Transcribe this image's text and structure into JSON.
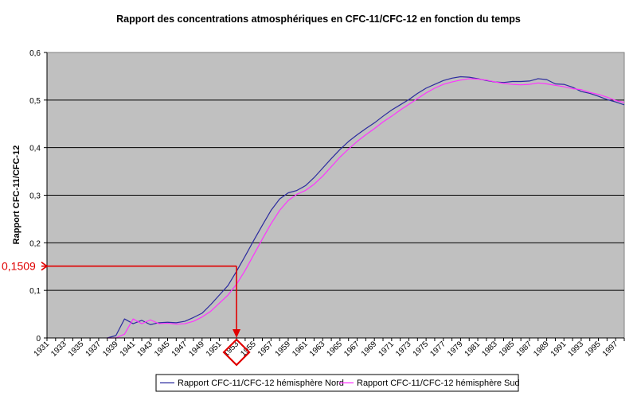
{
  "chart_data": {
    "type": "line",
    "title": "Rapport des concentrations atmosphériques en CFC-11/CFC-12 en fonction du temps",
    "xlabel": "",
    "ylabel": "Rapport CFC-11/CFC-12",
    "xlim": [
      1931,
      1998
    ],
    "ylim": [
      0,
      0.6
    ],
    "y_ticks": [
      0,
      0.1,
      0.2,
      0.3,
      0.4,
      0.5,
      0.6
    ],
    "y_tick_labels": [
      "0",
      "0,1",
      "0,2",
      "0,3",
      "0,4",
      "0,5",
      "0,6"
    ],
    "x_ticks": [
      1931,
      1933,
      1935,
      1937,
      1939,
      1941,
      1943,
      1945,
      1947,
      1949,
      1951,
      1953,
      1955,
      1957,
      1959,
      1961,
      1963,
      1965,
      1967,
      1969,
      1971,
      1973,
      1975,
      1977,
      1979,
      1981,
      1983,
      1985,
      1987,
      1989,
      1991,
      1993,
      1995,
      1997
    ],
    "grid": true,
    "legend_position": "bottom",
    "plot_background": "#c0c0c0",
    "series": [
      {
        "name": "Rapport CFC-11/CFC-12 hémisphère Nord",
        "color": "#2b2b9e",
        "x": [
          1938,
          1939,
          1940,
          1941,
          1942,
          1943,
          1944,
          1945,
          1946,
          1947,
          1948,
          1949,
          1950,
          1951,
          1952,
          1953,
          1954,
          1955,
          1956,
          1957,
          1958,
          1959,
          1960,
          1961,
          1962,
          1963,
          1964,
          1965,
          1966,
          1967,
          1968,
          1969,
          1970,
          1971,
          1972,
          1973,
          1974,
          1975,
          1976,
          1977,
          1978,
          1979,
          1980,
          1981,
          1982,
          1983,
          1984,
          1985,
          1986,
          1987,
          1988,
          1989,
          1990,
          1991,
          1992,
          1993,
          1994,
          1995,
          1996,
          1997,
          1998
        ],
        "y": [
          0,
          0.005,
          0.04,
          0.03,
          0.037,
          0.028,
          0.032,
          0.033,
          0.032,
          0.035,
          0.043,
          0.052,
          0.07,
          0.09,
          0.11,
          0.14,
          0.172,
          0.205,
          0.237,
          0.268,
          0.292,
          0.305,
          0.31,
          0.32,
          0.337,
          0.357,
          0.377,
          0.396,
          0.413,
          0.427,
          0.44,
          0.452,
          0.466,
          0.479,
          0.49,
          0.501,
          0.514,
          0.525,
          0.533,
          0.541,
          0.546,
          0.549,
          0.548,
          0.545,
          0.541,
          0.538,
          0.537,
          0.539,
          0.539,
          0.54,
          0.545,
          0.543,
          0.534,
          0.533,
          0.527,
          0.518,
          0.514,
          0.508,
          0.501,
          0.496,
          0.49
        ]
      },
      {
        "name": "Rapport CFC-11/CFC-12 hémisphère Sud",
        "color": "#ff33ff",
        "x": [
          1938,
          1939,
          1940,
          1941,
          1942,
          1943,
          1944,
          1945,
          1946,
          1947,
          1948,
          1949,
          1950,
          1951,
          1952,
          1953,
          1954,
          1955,
          1956,
          1957,
          1958,
          1959,
          1960,
          1961,
          1962,
          1963,
          1964,
          1965,
          1966,
          1967,
          1968,
          1969,
          1970,
          1971,
          1972,
          1973,
          1974,
          1975,
          1976,
          1977,
          1978,
          1979,
          1980,
          1981,
          1982,
          1983,
          1984,
          1985,
          1986,
          1987,
          1988,
          1989,
          1990,
          1991,
          1992,
          1993,
          1994,
          1995,
          1996,
          1997,
          1998
        ],
        "y": [
          0,
          0,
          0.008,
          0.04,
          0.03,
          0.038,
          0.03,
          0.031,
          0.029,
          0.03,
          0.035,
          0.044,
          0.056,
          0.073,
          0.09,
          0.113,
          0.142,
          0.175,
          0.208,
          0.24,
          0.268,
          0.289,
          0.302,
          0.31,
          0.323,
          0.34,
          0.36,
          0.38,
          0.397,
          0.413,
          0.427,
          0.44,
          0.454,
          0.466,
          0.479,
          0.491,
          0.503,
          0.515,
          0.525,
          0.533,
          0.538,
          0.542,
          0.545,
          0.544,
          0.542,
          0.538,
          0.535,
          0.533,
          0.532,
          0.533,
          0.536,
          0.534,
          0.531,
          0.528,
          0.524,
          0.522,
          0.516,
          0.512,
          0.506,
          0.499,
          0.495
        ]
      }
    ],
    "annotations": [
      {
        "label": "0,1509",
        "y": 0.1509,
        "x": 1953,
        "color": "#e00000"
      }
    ]
  }
}
